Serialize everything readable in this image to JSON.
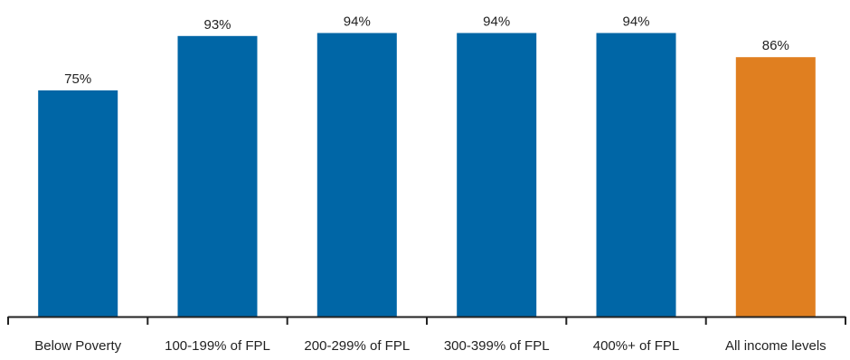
{
  "chart_data": {
    "type": "bar",
    "categories": [
      "Below Poverty",
      "100-199% of FPL",
      "200-299% of FPL",
      "300-399% of FPL",
      "400%+ of FPL",
      "All income levels"
    ],
    "values": [
      75,
      93,
      94,
      94,
      94,
      86
    ],
    "data_labels": [
      "75%",
      "93%",
      "94%",
      "94%",
      "94%",
      "86%"
    ],
    "unit": "%",
    "ylim": [
      0,
      100
    ],
    "grid": false,
    "legend": "none",
    "colors": [
      "#0066a6",
      "#0066a6",
      "#0066a6",
      "#0066a6",
      "#0066a6",
      "#e07f20"
    ],
    "axis_color": "#222222"
  }
}
